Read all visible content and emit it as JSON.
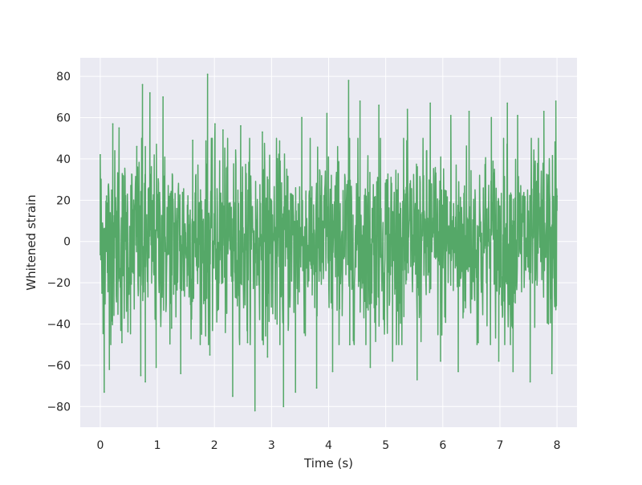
{
  "chart_data": {
    "type": "line",
    "title": "",
    "xlabel": "Time (s)",
    "ylabel": "Whitened strain",
    "xlim": [
      -0.35,
      8.35
    ],
    "ylim": [
      -90,
      89
    ],
    "x_ticks": [
      0,
      1,
      2,
      3,
      4,
      5,
      6,
      7,
      8
    ],
    "y_ticks": [
      -80,
      -60,
      -40,
      -20,
      0,
      20,
      40,
      60,
      80
    ],
    "grid": true,
    "style": "seaborn-darkgrid",
    "background_color": "#EAEAF2",
    "grid_color": "#FFFFFF",
    "series": [
      {
        "color": "#55A868",
        "sample_count": 1600,
        "x_start": 0,
        "x_end": 8,
        "typical_range": [
          -35,
          35
        ],
        "x": [
          0.0,
          0.03,
          0.07,
          0.11,
          0.16,
          0.22,
          0.33,
          0.38,
          0.53,
          0.64,
          0.71,
          0.74,
          0.79,
          0.87,
          0.98,
          1.1,
          1.25,
          1.41,
          1.62,
          1.88,
          1.92,
          2.01,
          2.15,
          2.32,
          2.46,
          2.58,
          2.71,
          2.84,
          2.93,
          3.21,
          3.42,
          3.53,
          3.79,
          3.97,
          4.07,
          4.35,
          4.37,
          4.55,
          4.73,
          4.88,
          5.12,
          5.38,
          5.55,
          5.78,
          5.96,
          6.14,
          6.27,
          6.46,
          6.62,
          6.85,
          6.98,
          7.13,
          7.23,
          7.31,
          7.53,
          7.77,
          7.91,
          7.98,
          8.0
        ],
        "y": [
          42,
          -25,
          -73,
          22,
          -62,
          57,
          55,
          -49,
          -33,
          46,
          -65,
          76,
          -68,
          72,
          -61,
          70,
          -42,
          -64,
          49,
          81,
          -55,
          57,
          54,
          -75,
          56,
          -49,
          -82,
          53,
          -56,
          -80,
          -73,
          60,
          -71,
          62,
          -63,
          78,
          -50,
          68,
          -61,
          66,
          -58,
          64,
          -67,
          67,
          -58,
          61,
          -63,
          63,
          -49,
          60,
          -58,
          67,
          -63,
          61,
          -68,
          63,
          -64,
          68,
          22
        ]
      }
    ]
  }
}
